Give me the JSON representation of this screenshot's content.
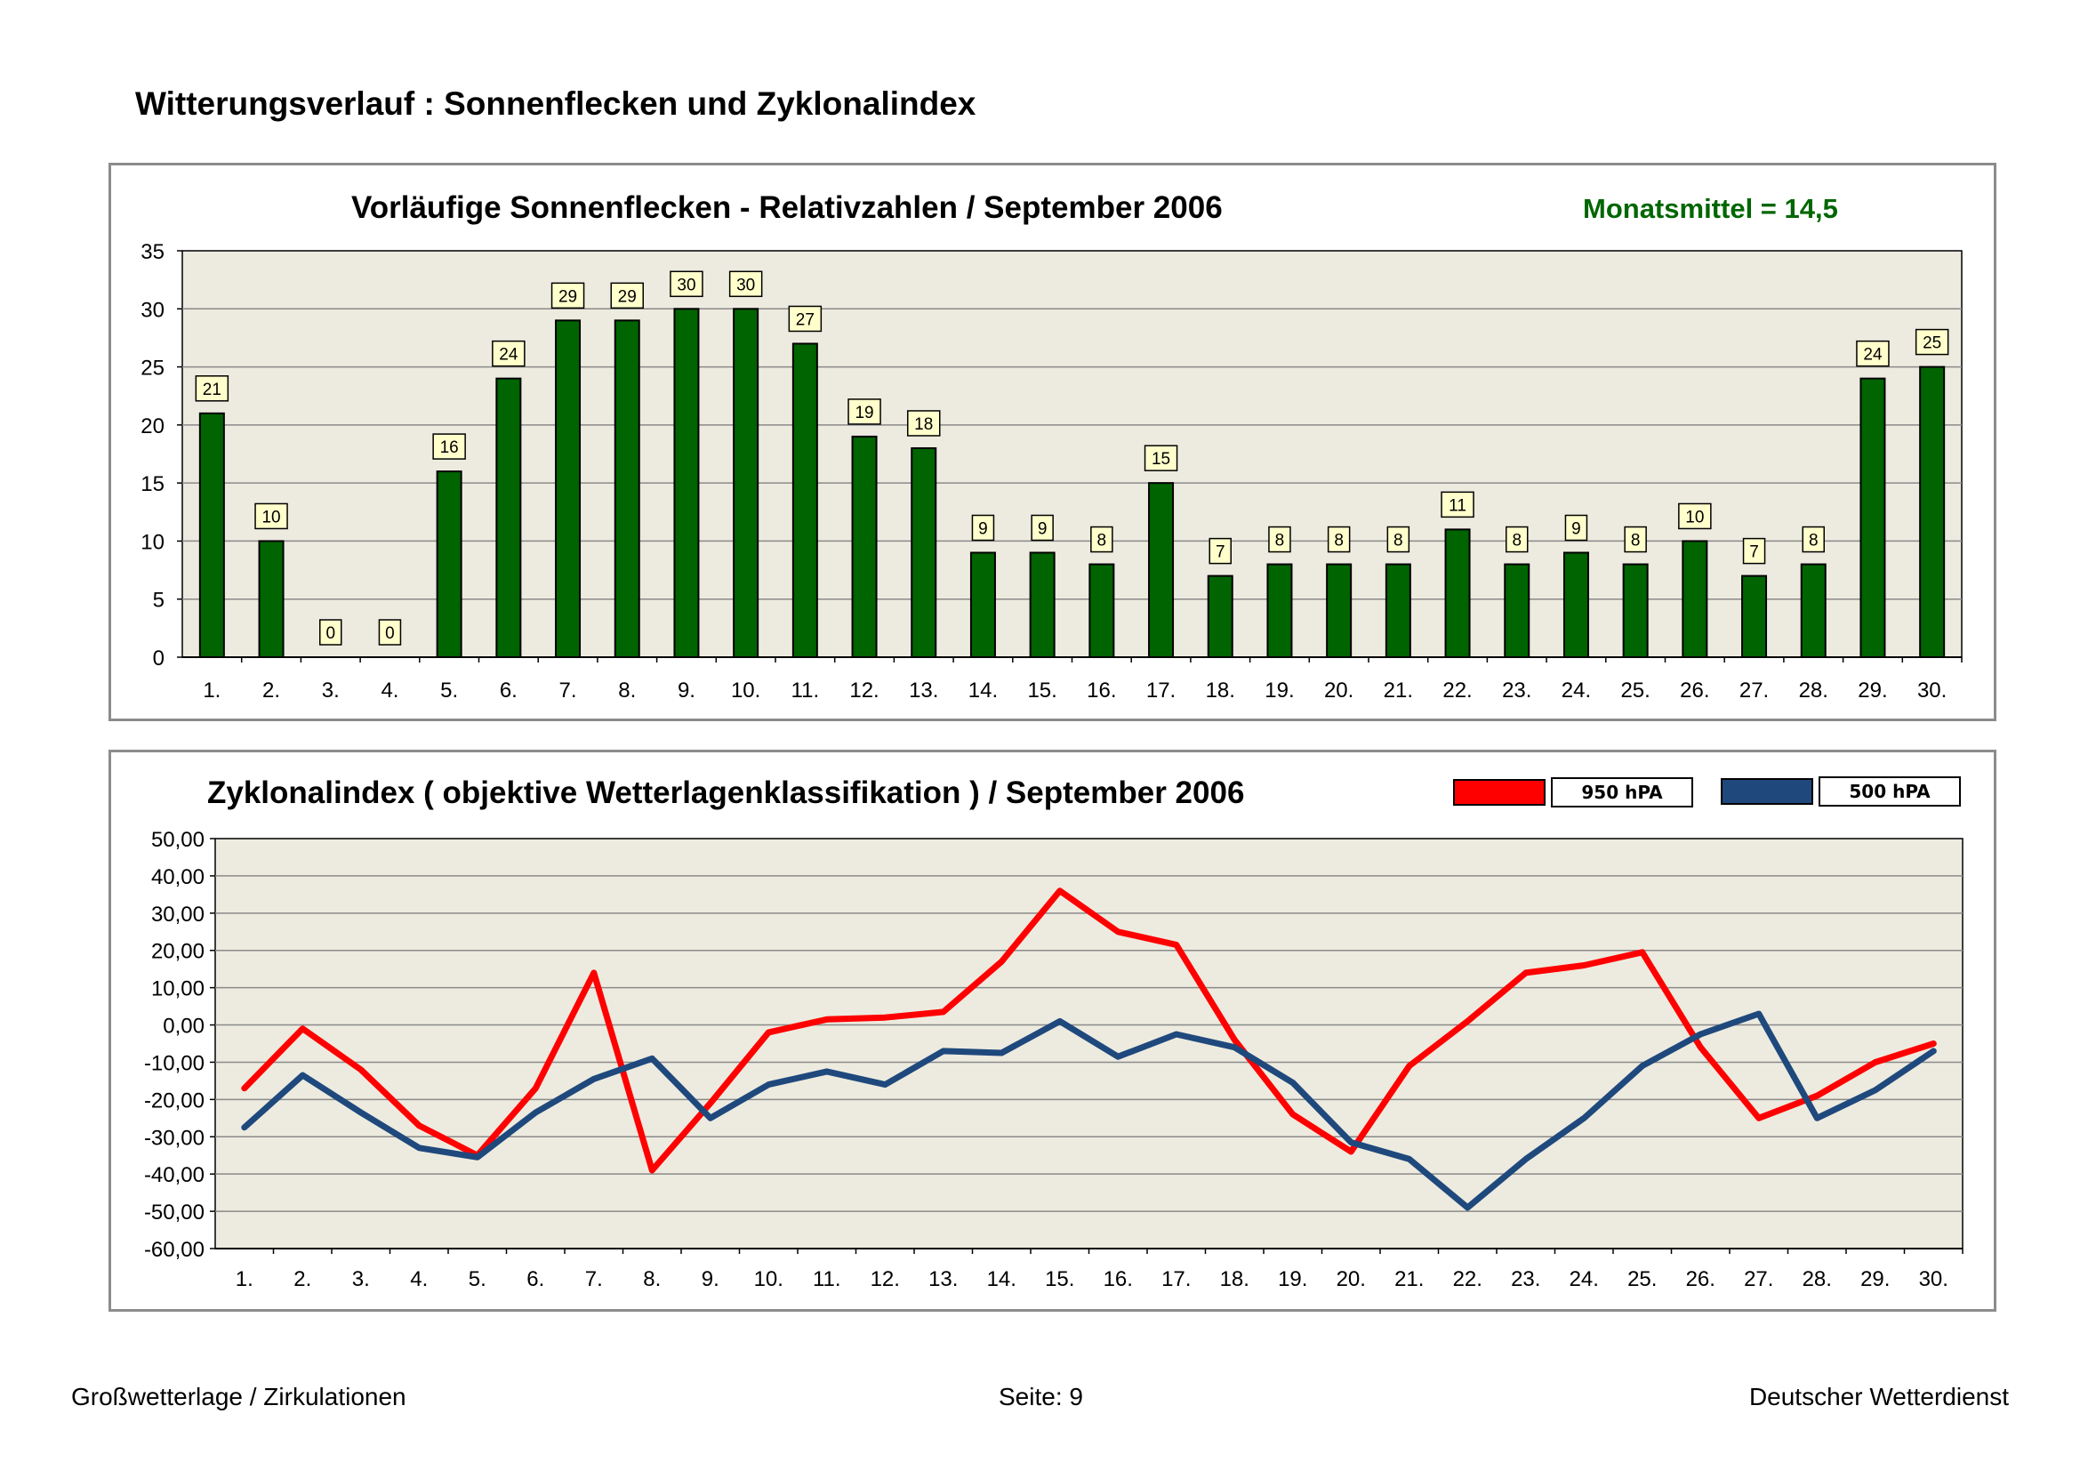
{
  "page_title": "Witterungsverlauf : Sonnenflecken und Zyklonalindex",
  "footer": {
    "left": "Großwetterlage / Zirkulationen",
    "center": "Seite: 9",
    "right": "Deutscher Wetterdienst"
  },
  "colors": {
    "bar": "#006400",
    "plot_bg": "#edebdf",
    "label_bg": "#ffffcc",
    "line_950": "#ff0000",
    "line_500": "#1f497d",
    "mean": "#006600"
  },
  "chart_data": [
    {
      "type": "bar",
      "title": "Vorläufige Sonnenflecken - Relativzahlen   /   September 2006",
      "annotation": "Monatsmittel = 14,5",
      "categories": [
        "1.",
        "2.",
        "3.",
        "4.",
        "5.",
        "6.",
        "7.",
        "8.",
        "9.",
        "10.",
        "11.",
        "12.",
        "13.",
        "14.",
        "15.",
        "16.",
        "17.",
        "18.",
        "19.",
        "20.",
        "21.",
        "22.",
        "23.",
        "24.",
        "25.",
        "26.",
        "27.",
        "28.",
        "29.",
        "30."
      ],
      "values": [
        21,
        10,
        0,
        0,
        16,
        24,
        29,
        29,
        30,
        30,
        27,
        19,
        18,
        9,
        9,
        8,
        15,
        7,
        8,
        8,
        8,
        11,
        8,
        9,
        8,
        10,
        7,
        8,
        24,
        25
      ],
      "ylim": [
        0,
        35
      ],
      "yticks": [
        "0",
        "5",
        "10",
        "15",
        "20",
        "25",
        "30",
        "35"
      ],
      "grid": true,
      "xlabel": "",
      "ylabel": ""
    },
    {
      "type": "line",
      "title": "Zyklonalindex  ( objektive Wetterlagenklassifikation )  /  September 2006",
      "categories": [
        "1.",
        "2.",
        "3.",
        "4.",
        "5.",
        "6.",
        "7.",
        "8.",
        "9.",
        "10.",
        "11.",
        "12.",
        "13.",
        "14.",
        "15.",
        "16.",
        "17.",
        "18.",
        "19.",
        "20.",
        "21.",
        "22.",
        "23.",
        "24.",
        "25.",
        "26.",
        "27.",
        "28.",
        "29.",
        "30."
      ],
      "series": [
        {
          "name": "950 hPA",
          "color": "#ff0000",
          "values": [
            -17,
            -1,
            -12,
            -27,
            -35,
            -17,
            14,
            -39,
            -21,
            -2,
            1.5,
            2,
            3.5,
            17,
            36,
            25,
            21.5,
            -4,
            -24,
            -34,
            -11,
            1,
            14,
            16,
            19.5,
            -6,
            -25,
            -19,
            -10,
            -5
          ]
        },
        {
          "name": "500 hPA",
          "color": "#1f497d",
          "values": [
            -27.5,
            -13.5,
            -23.5,
            -33,
            -35.5,
            -23.5,
            -14.5,
            -9,
            -25,
            -16,
            -12.5,
            -16,
            -7,
            -7.5,
            1,
            -8.5,
            -2.5,
            -6,
            -15.5,
            -31.5,
            -36,
            -49,
            -36,
            -25,
            -11,
            -2.5,
            3,
            -25,
            -17.5,
            -7
          ]
        }
      ],
      "ylim": [
        -60,
        50
      ],
      "yticks": [
        "-60,00",
        "-50,00",
        "-40,00",
        "-30,00",
        "-20,00",
        "-10,00",
        "0,00",
        "10,00",
        "20,00",
        "30,00",
        "40,00",
        "50,00"
      ],
      "grid": true,
      "legend": "top-right",
      "xlabel": "",
      "ylabel": ""
    }
  ]
}
